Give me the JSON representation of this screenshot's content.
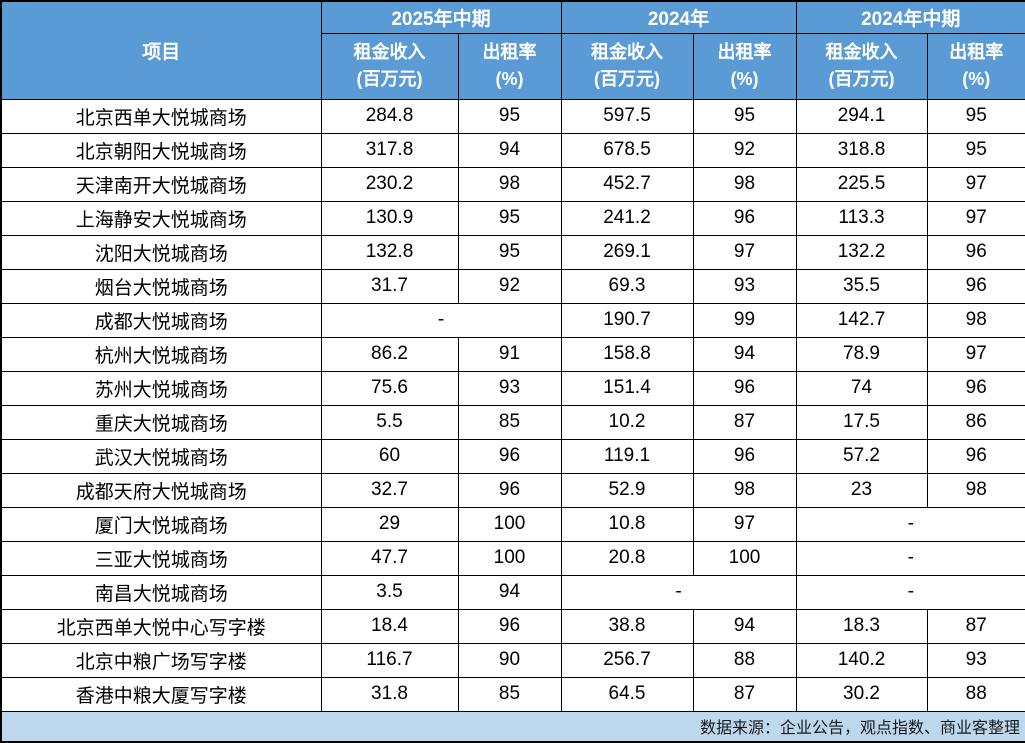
{
  "table": {
    "corner_header": "项目",
    "col_groups": [
      "2025年中期",
      "2024年",
      "2024年中期"
    ],
    "sub_income_line1": "租金收入",
    "sub_income_line2": "(百万元)",
    "sub_rate_line1": "出租率",
    "sub_rate_line2": "(%)"
  },
  "footer": {
    "source_note": "数据来源：企业公告，观点指数、商业客整理"
  },
  "colors": {
    "header_bg": "#5B9BD5",
    "header_text": "#FFFFFF",
    "footer_bg": "#BDD7EE",
    "footer_text": "#1A1A1A",
    "border": "#000000",
    "body_text": "#000000"
  },
  "chart_data": {
    "type": "table",
    "title": "",
    "missing_placeholder": "-",
    "columns": [
      "项目",
      "2025年中期 租金收入(百万元)",
      "2025年中期 出租率(%)",
      "2024年 租金收入(百万元)",
      "2024年 出租率(%)",
      "2024年中期 租金收入(百万元)",
      "2024年中期 出租率(%)"
    ],
    "rows": [
      [
        "北京西单大悦城商场",
        284.8,
        95,
        597.5,
        95,
        294.1,
        95
      ],
      [
        "北京朝阳大悦城商场",
        317.8,
        94,
        678.5,
        92,
        318.8,
        95
      ],
      [
        "天津南开大悦城商场",
        230.2,
        98,
        452.7,
        98,
        225.5,
        97
      ],
      [
        "上海静安大悦城商场",
        130.9,
        95,
        241.2,
        96,
        113.3,
        97
      ],
      [
        "沈阳大悦城商场",
        132.8,
        95,
        269.1,
        97,
        132.2,
        96
      ],
      [
        "烟台大悦城商场",
        31.7,
        92,
        69.3,
        93,
        35.5,
        96
      ],
      [
        "成都大悦城商场",
        null,
        null,
        190.7,
        99,
        142.7,
        98
      ],
      [
        "杭州大悦城商场",
        86.2,
        91,
        158.8,
        94,
        78.9,
        97
      ],
      [
        "苏州大悦城商场",
        75.6,
        93,
        151.4,
        96,
        74,
        96
      ],
      [
        "重庆大悦城商场",
        5.5,
        85,
        10.2,
        87,
        17.5,
        86
      ],
      [
        "武汉大悦城商场",
        60,
        96,
        119.1,
        96,
        57.2,
        96
      ],
      [
        "成都天府大悦城商场",
        32.7,
        96,
        52.9,
        98,
        23,
        98
      ],
      [
        "厦门大悦城商场",
        29,
        100,
        10.8,
        97,
        null,
        null
      ],
      [
        "三亚大悦城商场",
        47.7,
        100,
        20.8,
        100,
        null,
        null
      ],
      [
        "南昌大悦城商场",
        3.5,
        94,
        null,
        null,
        null,
        null
      ],
      [
        "北京西单大悦中心写字楼",
        18.4,
        96,
        38.8,
        94,
        18.3,
        87
      ],
      [
        "北京中粮广场写字楼",
        116.7,
        90,
        256.7,
        88,
        140.2,
        93
      ],
      [
        "香港中粮大厦写字楼",
        31.8,
        85,
        64.5,
        87,
        30.2,
        88
      ]
    ]
  }
}
